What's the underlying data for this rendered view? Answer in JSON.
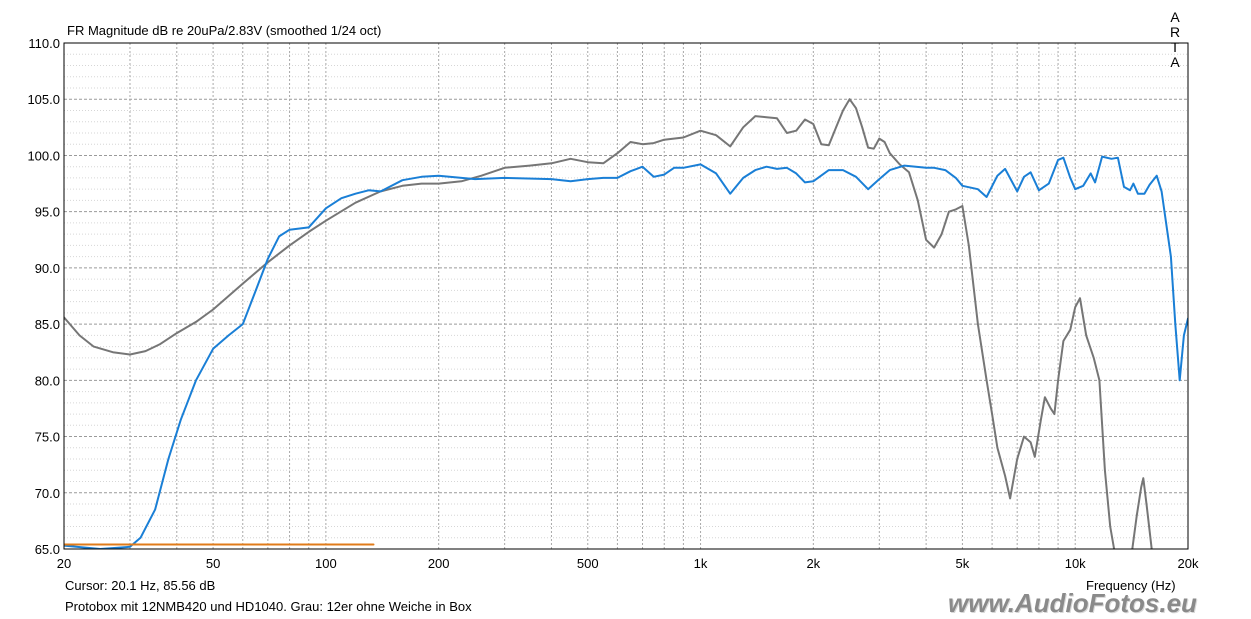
{
  "chart_title": "FR Magnitude dB re 20uPa/2.83V (smoothed 1/24 oct)",
  "brand": "ARTA",
  "cursor_readout": "Cursor: 20.1 Hz, 85.56 dB",
  "caption": "Protobox mit 12NMB420 und HD1040. Grau: 12er ohne Weiche in Box",
  "watermark": "www.AudioFotos.eu",
  "colors": {
    "blue": "#1a7fd6",
    "gray": "#767676",
    "orange": "#e07b1a",
    "grid": "#b0b0b0"
  },
  "chart_data": {
    "type": "line",
    "title": "FR Magnitude dB re 20uPa/2.83V (smoothed 1/24 oct)",
    "xlabel": "Frequency (Hz)",
    "ylabel": "",
    "xscale": "log",
    "xlim": [
      20,
      20000
    ],
    "ylim": [
      65,
      110
    ],
    "grid": true,
    "x_tick_labels": [
      "20",
      "50",
      "100",
      "200",
      "500",
      "1k",
      "2k",
      "5k",
      "10k",
      "20k"
    ],
    "x_tick_values": [
      20,
      50,
      100,
      200,
      500,
      1000,
      2000,
      5000,
      10000,
      20000
    ],
    "y_tick_labels": [
      "65.0",
      "70.0",
      "75.0",
      "80.0",
      "85.0",
      "90.0",
      "95.0",
      "100.0",
      "105.0",
      "110.0"
    ],
    "y_tick_values": [
      65,
      70,
      75,
      80,
      85,
      90,
      95,
      100,
      105,
      110
    ],
    "series": [
      {
        "color": "#767676",
        "points": [
          [
            20,
            85.6
          ],
          [
            22,
            84
          ],
          [
            24,
            83
          ],
          [
            27,
            82.5
          ],
          [
            30,
            82.3
          ],
          [
            33,
            82.6
          ],
          [
            36,
            83.2
          ],
          [
            40,
            84.2
          ],
          [
            45,
            85.2
          ],
          [
            50,
            86.3
          ],
          [
            55,
            87.5
          ],
          [
            60,
            88.6
          ],
          [
            70,
            90.5
          ],
          [
            80,
            92
          ],
          [
            90,
            93.2
          ],
          [
            100,
            94.2
          ],
          [
            120,
            95.8
          ],
          [
            140,
            96.8
          ],
          [
            160,
            97.3
          ],
          [
            180,
            97.5
          ],
          [
            200,
            97.5
          ],
          [
            230,
            97.7
          ],
          [
            260,
            98.2
          ],
          [
            300,
            98.9
          ],
          [
            350,
            99.1
          ],
          [
            400,
            99.3
          ],
          [
            450,
            99.7
          ],
          [
            500,
            99.4
          ],
          [
            550,
            99.3
          ],
          [
            600,
            100.2
          ],
          [
            650,
            101.2
          ],
          [
            700,
            101
          ],
          [
            750,
            101.1
          ],
          [
            800,
            101.4
          ],
          [
            900,
            101.6
          ],
          [
            1000,
            102.2
          ],
          [
            1100,
            101.8
          ],
          [
            1200,
            100.8
          ],
          [
            1300,
            102.5
          ],
          [
            1400,
            103.5
          ],
          [
            1500,
            103.4
          ],
          [
            1600,
            103.3
          ],
          [
            1700,
            102
          ],
          [
            1800,
            102.2
          ],
          [
            1900,
            103.2
          ],
          [
            2000,
            102.8
          ],
          [
            2100,
            101
          ],
          [
            2200,
            100.9
          ],
          [
            2300,
            102.5
          ],
          [
            2400,
            104
          ],
          [
            2500,
            105
          ],
          [
            2600,
            104.2
          ],
          [
            2700,
            102.5
          ],
          [
            2800,
            100.7
          ],
          [
            2900,
            100.6
          ],
          [
            3000,
            101.5
          ],
          [
            3100,
            101.2
          ],
          [
            3200,
            100.2
          ],
          [
            3400,
            99.2
          ],
          [
            3600,
            98.5
          ],
          [
            3800,
            96
          ],
          [
            4000,
            92.5
          ],
          [
            4200,
            91.8
          ],
          [
            4400,
            93
          ],
          [
            4600,
            95
          ],
          [
            4800,
            95.2
          ],
          [
            5000,
            95.5
          ],
          [
            5200,
            92
          ],
          [
            5500,
            85
          ],
          [
            5800,
            80
          ],
          [
            6000,
            77
          ],
          [
            6200,
            74
          ],
          [
            6500,
            71.5
          ],
          [
            6700,
            69.5
          ],
          [
            7000,
            73
          ],
          [
            7300,
            75
          ],
          [
            7600,
            74.5
          ],
          [
            7800,
            73.2
          ],
          [
            8100,
            76.5
          ],
          [
            8300,
            78.5
          ],
          [
            8600,
            77.5
          ],
          [
            8800,
            77
          ],
          [
            9000,
            80
          ],
          [
            9300,
            83.5
          ],
          [
            9700,
            84.5
          ],
          [
            10000,
            86.5
          ],
          [
            10300,
            87.3
          ],
          [
            10700,
            84
          ],
          [
            11200,
            82
          ],
          [
            11600,
            80
          ],
          [
            12000,
            72
          ],
          [
            12400,
            67
          ],
          [
            12700,
            65
          ]
        ]
      },
      {
        "color": "#767676",
        "points": [
          [
            14200,
            65
          ],
          [
            14600,
            68
          ],
          [
            15000,
            70.5
          ],
          [
            15200,
            71.3
          ],
          [
            15500,
            69
          ],
          [
            16000,
            65
          ]
        ]
      },
      {
        "color": "#1a7fd6",
        "points": [
          [
            20,
            65.3
          ],
          [
            25,
            65
          ],
          [
            30,
            65.2
          ],
          [
            32,
            66
          ],
          [
            35,
            68.5
          ],
          [
            38,
            73
          ],
          [
            41,
            76.5
          ],
          [
            45,
            80
          ],
          [
            50,
            82.8
          ],
          [
            55,
            84
          ],
          [
            60,
            85
          ],
          [
            65,
            88
          ],
          [
            70,
            90.8
          ],
          [
            75,
            92.8
          ],
          [
            80,
            93.4
          ],
          [
            90,
            93.6
          ],
          [
            100,
            95.3
          ],
          [
            110,
            96.2
          ],
          [
            120,
            96.6
          ],
          [
            130,
            96.9
          ],
          [
            140,
            96.8
          ],
          [
            160,
            97.8
          ],
          [
            180,
            98.1
          ],
          [
            200,
            98.2
          ],
          [
            250,
            97.9
          ],
          [
            300,
            98
          ],
          [
            400,
            97.9
          ],
          [
            450,
            97.7
          ],
          [
            500,
            97.9
          ],
          [
            550,
            98
          ],
          [
            600,
            98
          ],
          [
            650,
            98.6
          ],
          [
            700,
            99
          ],
          [
            750,
            98.1
          ],
          [
            800,
            98.3
          ],
          [
            850,
            98.9
          ],
          [
            900,
            98.9
          ],
          [
            1000,
            99.2
          ],
          [
            1100,
            98.4
          ],
          [
            1200,
            96.6
          ],
          [
            1300,
            98
          ],
          [
            1400,
            98.7
          ],
          [
            1500,
            99
          ],
          [
            1600,
            98.8
          ],
          [
            1700,
            98.9
          ],
          [
            1800,
            98.4
          ],
          [
            1900,
            97.6
          ],
          [
            2000,
            97.7
          ],
          [
            2200,
            98.7
          ],
          [
            2400,
            98.7
          ],
          [
            2600,
            98.1
          ],
          [
            2800,
            97
          ],
          [
            3000,
            97.9
          ],
          [
            3200,
            98.7
          ],
          [
            3500,
            99.1
          ],
          [
            4000,
            98.9
          ],
          [
            4200,
            98.9
          ],
          [
            4500,
            98.7
          ],
          [
            4800,
            98
          ],
          [
            5000,
            97.3
          ],
          [
            5500,
            97
          ],
          [
            5800,
            96.3
          ],
          [
            6200,
            98.2
          ],
          [
            6500,
            98.8
          ],
          [
            7000,
            96.8
          ],
          [
            7300,
            98.1
          ],
          [
            7600,
            98.5
          ],
          [
            8000,
            96.9
          ],
          [
            8500,
            97.5
          ],
          [
            9000,
            99.6
          ],
          [
            9300,
            99.8
          ],
          [
            9700,
            98
          ],
          [
            10000,
            97
          ],
          [
            10500,
            97.3
          ],
          [
            11000,
            98.4
          ],
          [
            11300,
            97.6
          ],
          [
            11800,
            99.9
          ],
          [
            12500,
            99.7
          ],
          [
            13000,
            99.8
          ],
          [
            13500,
            97.2
          ],
          [
            14000,
            96.9
          ],
          [
            14300,
            97.5
          ],
          [
            14700,
            96.6
          ],
          [
            15300,
            96.6
          ],
          [
            15800,
            97.4
          ],
          [
            16500,
            98.2
          ],
          [
            17000,
            96.8
          ],
          [
            18000,
            91
          ],
          [
            18500,
            85
          ],
          [
            19000,
            80
          ],
          [
            19500,
            84
          ],
          [
            20000,
            85.5
          ]
        ]
      },
      {
        "color": "#e07b1a",
        "points": [
          [
            20,
            65.4
          ],
          [
            134,
            65.4
          ]
        ]
      }
    ]
  }
}
